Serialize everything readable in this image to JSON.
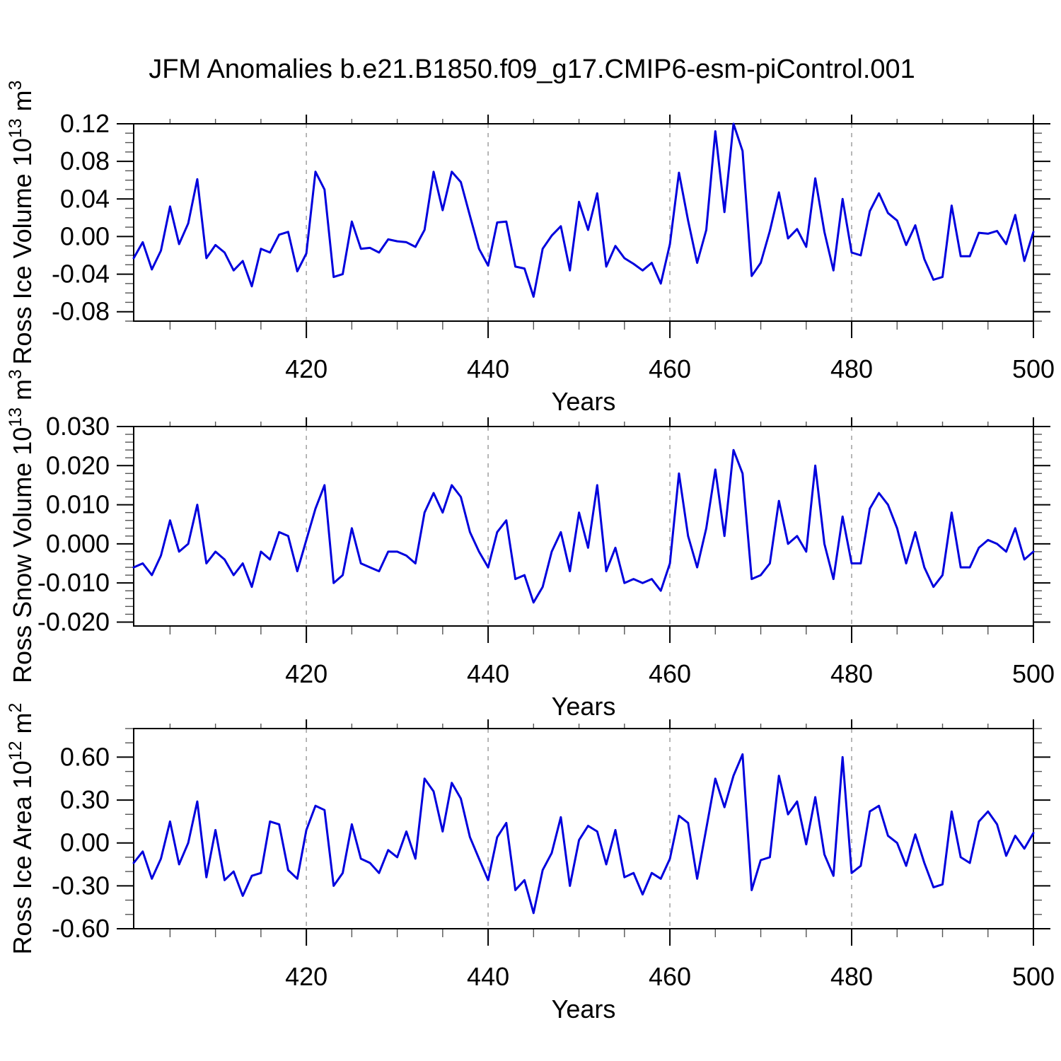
{
  "title": "JFM Anomalies b.e21.B1850.f09_g17.CMIP6-esm-piControl.001",
  "colors": {
    "line": "#0000dd",
    "grid": "#aaaaaa",
    "axis": "#000000",
    "minor_tick": "#555555",
    "text": "#000000"
  },
  "x_axis": {
    "label": "Years",
    "lim": [
      401,
      500
    ],
    "ticks": [
      420,
      440,
      460,
      480,
      500
    ],
    "tick_labels": [
      "420",
      "440",
      "460",
      "480",
      "500"
    ],
    "minor_step": 5,
    "gridlines": [
      420,
      440,
      460,
      480
    ],
    "grid_style": "dashed"
  },
  "years": {
    "start": 401,
    "end": 500,
    "step": 1
  },
  "chart_data": [
    {
      "type": "line",
      "name": "ross-ice-volume",
      "ylabel": "Ross Ice Volume 10^13 m^3",
      "ylabel_segments": [
        {
          "t": "Ross Ice Volume 10"
        },
        {
          "t": "13",
          "sup": true
        },
        {
          "t": " m"
        },
        {
          "t": "3",
          "sup": true
        }
      ],
      "ylim": [
        -0.09,
        0.12
      ],
      "yticks": [
        0.12,
        0.08,
        0.04,
        0.0,
        -0.04,
        -0.08
      ],
      "ytick_labels": [
        "0.12",
        "0.08",
        "0.04",
        "0.00",
        "-0.04",
        "-0.08"
      ],
      "yminor_step": 0.01,
      "values": [
        -0.023,
        -0.006,
        -0.035,
        -0.015,
        0.032,
        -0.008,
        0.014,
        0.061,
        -0.023,
        -0.009,
        -0.017,
        -0.036,
        -0.026,
        -0.053,
        -0.013,
        -0.017,
        0.002,
        0.005,
        -0.037,
        -0.018,
        0.069,
        0.05,
        -0.043,
        -0.04,
        0.016,
        -0.013,
        -0.012,
        -0.017,
        -0.003,
        -0.005,
        -0.006,
        -0.011,
        0.007,
        0.069,
        0.028,
        0.069,
        0.058,
        0.022,
        -0.013,
        -0.031,
        0.015,
        0.016,
        -0.032,
        -0.034,
        -0.064,
        -0.013,
        0.001,
        0.011,
        -0.036,
        0.037,
        0.007,
        0.046,
        -0.032,
        -0.01,
        -0.023,
        -0.029,
        -0.036,
        -0.028,
        -0.05,
        -0.008,
        0.068,
        0.017,
        -0.028,
        0.007,
        0.112,
        0.026,
        0.12,
        0.091,
        -0.042,
        -0.028,
        0.006,
        0.047,
        -0.002,
        0.008,
        -0.011,
        0.062,
        0.005,
        -0.036,
        0.04,
        -0.017,
        -0.02,
        0.027,
        0.046,
        0.025,
        0.017,
        -0.009,
        0.012,
        -0.024,
        -0.046,
        -0.043,
        0.033,
        -0.021,
        -0.021,
        0.004,
        0.003,
        0.006,
        -0.008,
        0.023,
        -0.026,
        0.005
      ]
    },
    {
      "type": "line",
      "name": "ross-snow-volume",
      "ylabel": "Ross Snow Volume 10^13 m^3",
      "ylabel_segments": [
        {
          "t": "Ross Snow Volume 10"
        },
        {
          "t": "13",
          "sup": true
        },
        {
          "t": " m"
        },
        {
          "t": "3",
          "sup": true
        }
      ],
      "ylim": [
        -0.021,
        0.03
      ],
      "yticks": [
        0.03,
        0.02,
        0.01,
        0.0,
        -0.01,
        -0.02
      ],
      "ytick_labels": [
        "0.030",
        "0.020",
        "0.010",
        "0.000",
        "-0.010",
        "-0.020"
      ],
      "yminor_step": 0.002,
      "values": [
        -0.006,
        -0.005,
        -0.008,
        -0.003,
        0.006,
        -0.002,
        0.0,
        0.01,
        -0.005,
        -0.002,
        -0.004,
        -0.008,
        -0.005,
        -0.011,
        -0.002,
        -0.004,
        0.003,
        0.002,
        -0.007,
        0.001,
        0.009,
        0.015,
        -0.01,
        -0.008,
        0.004,
        -0.005,
        -0.006,
        -0.007,
        -0.002,
        -0.002,
        -0.003,
        -0.005,
        0.008,
        0.013,
        0.008,
        0.015,
        0.012,
        0.003,
        -0.002,
        -0.006,
        0.003,
        0.006,
        -0.009,
        -0.008,
        -0.015,
        -0.011,
        -0.002,
        0.003,
        -0.007,
        0.008,
        -0.001,
        0.015,
        -0.007,
        -0.001,
        -0.01,
        -0.009,
        -0.01,
        -0.009,
        -0.012,
        -0.005,
        0.018,
        0.002,
        -0.006,
        0.004,
        0.019,
        0.002,
        0.024,
        0.018,
        -0.009,
        -0.008,
        -0.005,
        0.011,
        0.0,
        0.002,
        -0.002,
        0.02,
        0.0,
        -0.009,
        0.007,
        -0.005,
        -0.005,
        0.009,
        0.013,
        0.01,
        0.004,
        -0.005,
        0.003,
        -0.006,
        -0.011,
        -0.008,
        0.008,
        -0.006,
        -0.006,
        -0.001,
        0.001,
        0.0,
        -0.002,
        0.004,
        -0.004,
        -0.002
      ]
    },
    {
      "type": "line",
      "name": "ross-ice-area",
      "ylabel": "Ross Ice Area 10^12 m^2",
      "ylabel_segments": [
        {
          "t": "Ross Ice Area 10"
        },
        {
          "t": "12",
          "sup": true
        },
        {
          "t": " m"
        },
        {
          "t": "2",
          "sup": true
        }
      ],
      "ylim": [
        -0.6,
        0.8
      ],
      "yticks": [
        0.6,
        0.3,
        0.0,
        -0.3,
        -0.6
      ],
      "ytick_labels": [
        "0.60",
        "0.30",
        "0.00",
        "-0.30",
        "-0.60"
      ],
      "yminor_step": 0.1,
      "values": [
        -0.14,
        -0.06,
        -0.25,
        -0.11,
        0.15,
        -0.15,
        0.0,
        0.29,
        -0.24,
        0.09,
        -0.26,
        -0.2,
        -0.37,
        -0.23,
        -0.21,
        0.15,
        0.13,
        -0.19,
        -0.25,
        0.09,
        0.26,
        0.23,
        -0.3,
        -0.21,
        0.13,
        -0.11,
        -0.14,
        -0.21,
        -0.05,
        -0.1,
        0.08,
        -0.11,
        0.45,
        0.36,
        0.08,
        0.42,
        0.31,
        0.04,
        -0.11,
        -0.26,
        0.04,
        0.14,
        -0.33,
        -0.26,
        -0.49,
        -0.19,
        -0.07,
        0.18,
        -0.3,
        0.02,
        0.12,
        0.08,
        -0.15,
        0.09,
        -0.24,
        -0.21,
        -0.36,
        -0.21,
        -0.25,
        -0.11,
        0.19,
        0.14,
        -0.25,
        0.1,
        0.45,
        0.25,
        0.47,
        0.62,
        -0.33,
        -0.12,
        -0.1,
        0.47,
        0.2,
        0.29,
        -0.01,
        0.32,
        -0.08,
        -0.23,
        0.6,
        -0.21,
        -0.16,
        0.22,
        0.26,
        0.05,
        0.0,
        -0.16,
        0.06,
        -0.14,
        -0.31,
        -0.29,
        0.22,
        -0.1,
        -0.14,
        0.15,
        0.22,
        0.13,
        -0.09,
        0.05,
        -0.04,
        0.07
      ]
    }
  ]
}
